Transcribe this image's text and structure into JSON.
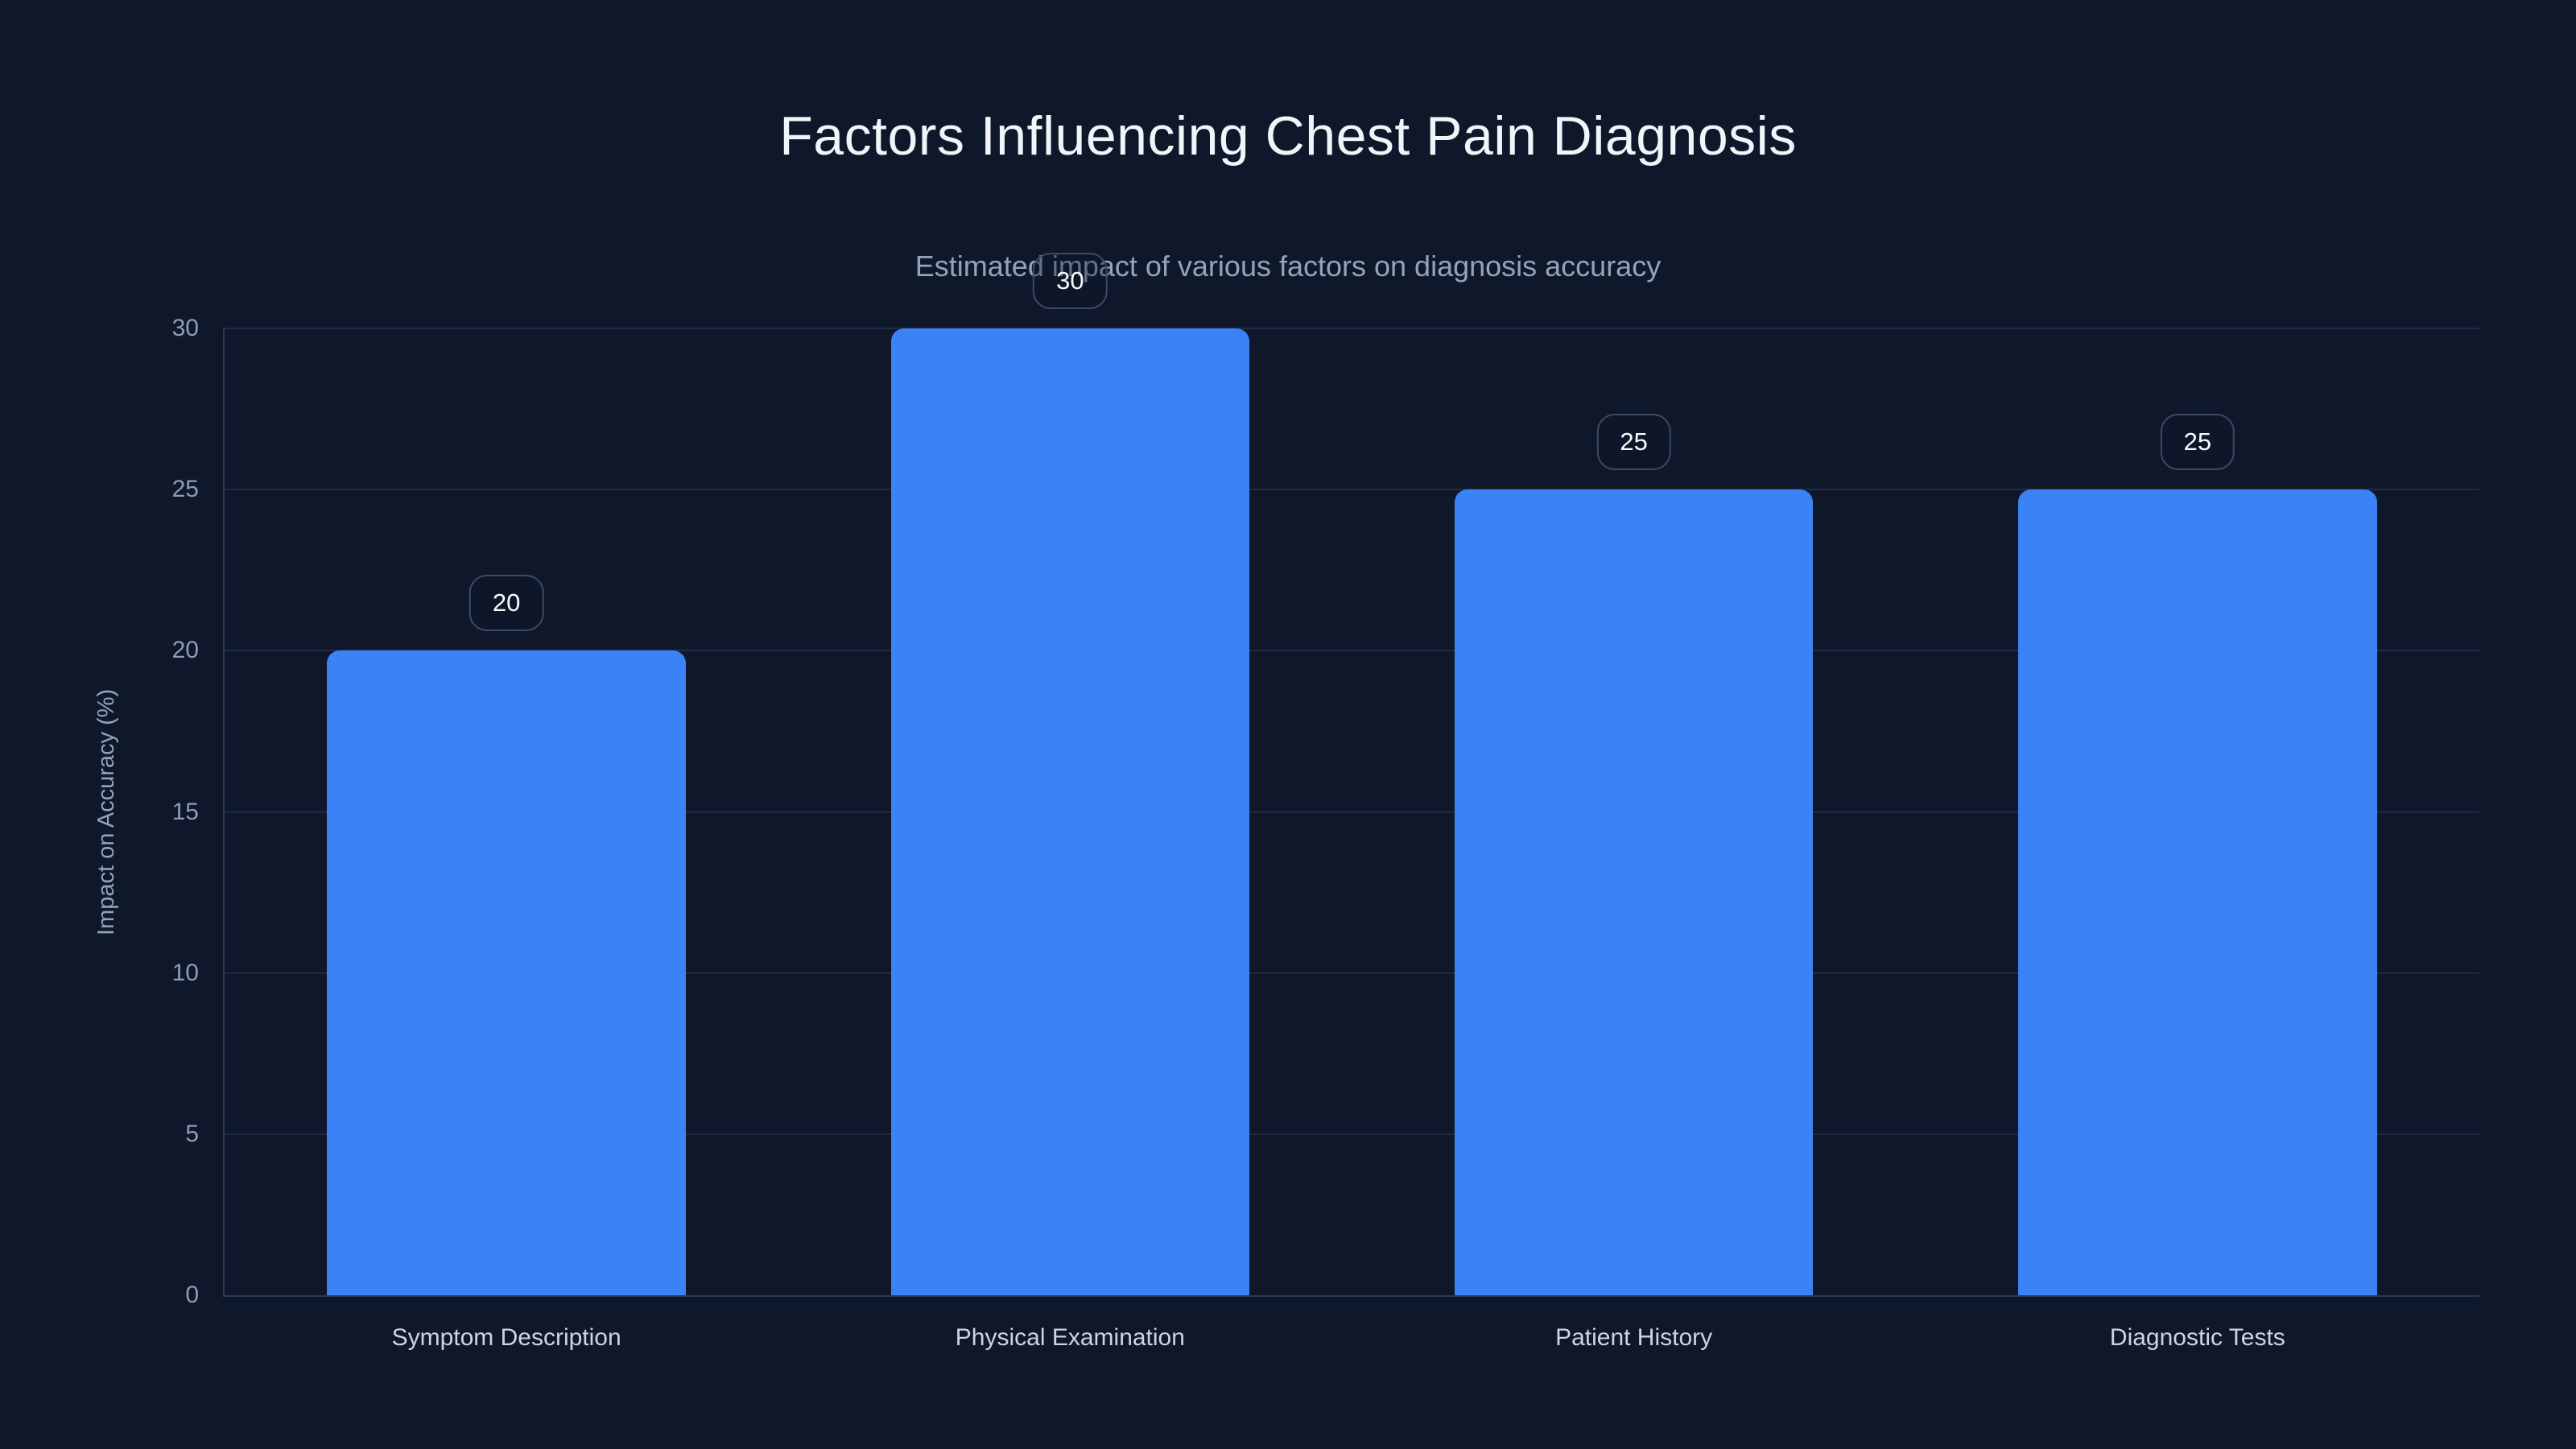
{
  "page": {
    "background": "#0f172a"
  },
  "header": {
    "title": "Factors Influencing Chest Pain Diagnosis",
    "subtitle": "Estimated impact of various factors on diagnosis accuracy"
  },
  "colors": {
    "background": "#0f172a",
    "bar": "#3b82f6",
    "gridline": "#212c42",
    "axis_line": "#2e3a52",
    "title_text": "#f1f5f9",
    "subtitle_text": "#94a3b8",
    "tick_text": "#8f9cb3",
    "category_text": "#cbd5e1",
    "badge_text": "#f8fafc",
    "badge_border": "#3e4a61"
  },
  "chart_data": {
    "type": "bar",
    "title": "Factors Influencing Chest Pain Diagnosis",
    "subtitle": "Estimated impact of various factors on diagnosis accuracy",
    "categories": [
      "Symptom Description",
      "Physical Examination",
      "Patient History",
      "Diagnostic Tests"
    ],
    "values": [
      20,
      30,
      25,
      25
    ],
    "bar_labels": [
      "20",
      "30",
      "25",
      "25"
    ],
    "xlabel": "",
    "ylabel": "Impact on Accuracy (%)",
    "ylim": [
      0,
      30
    ],
    "yticks": [
      0,
      5,
      10,
      15,
      20,
      25,
      30
    ],
    "grid": "horizontal-only",
    "legend": "none",
    "bar_color": "#3b82f6"
  }
}
